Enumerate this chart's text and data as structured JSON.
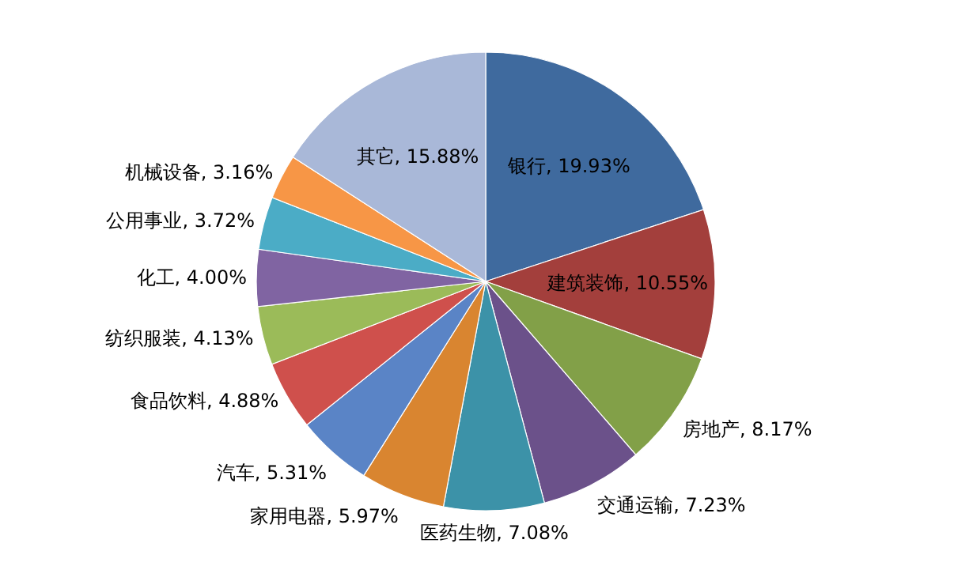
{
  "chart_data": {
    "type": "pie",
    "categories": [
      "银行",
      "建筑装饰",
      "房地产",
      "交通运输",
      "医药生物",
      "家用电器",
      "汽车",
      "食品饮料",
      "纺织服装",
      "化工",
      "公用事业",
      "机械设备",
      "其它"
    ],
    "values": [
      19.93,
      10.55,
      8.17,
      7.23,
      7.08,
      5.97,
      5.31,
      4.88,
      4.13,
      4.0,
      3.72,
      3.16,
      15.88
    ],
    "value_labels": [
      "19.93%",
      "10.55%",
      "8.17%",
      "7.23%",
      "7.08%",
      "5.97%",
      "5.31%",
      "4.88%",
      "4.13%",
      "4.00%",
      "3.72%",
      "3.16%",
      "15.88%"
    ],
    "colors": [
      "#3f6a9e",
      "#a33f3c",
      "#82a048",
      "#6b518a",
      "#3c92a8",
      "#d98530",
      "#5a84c6",
      "#cf504c",
      "#9bbb59",
      "#8064a2",
      "#4bacc6",
      "#f79646",
      "#a9b8d8"
    ]
  }
}
